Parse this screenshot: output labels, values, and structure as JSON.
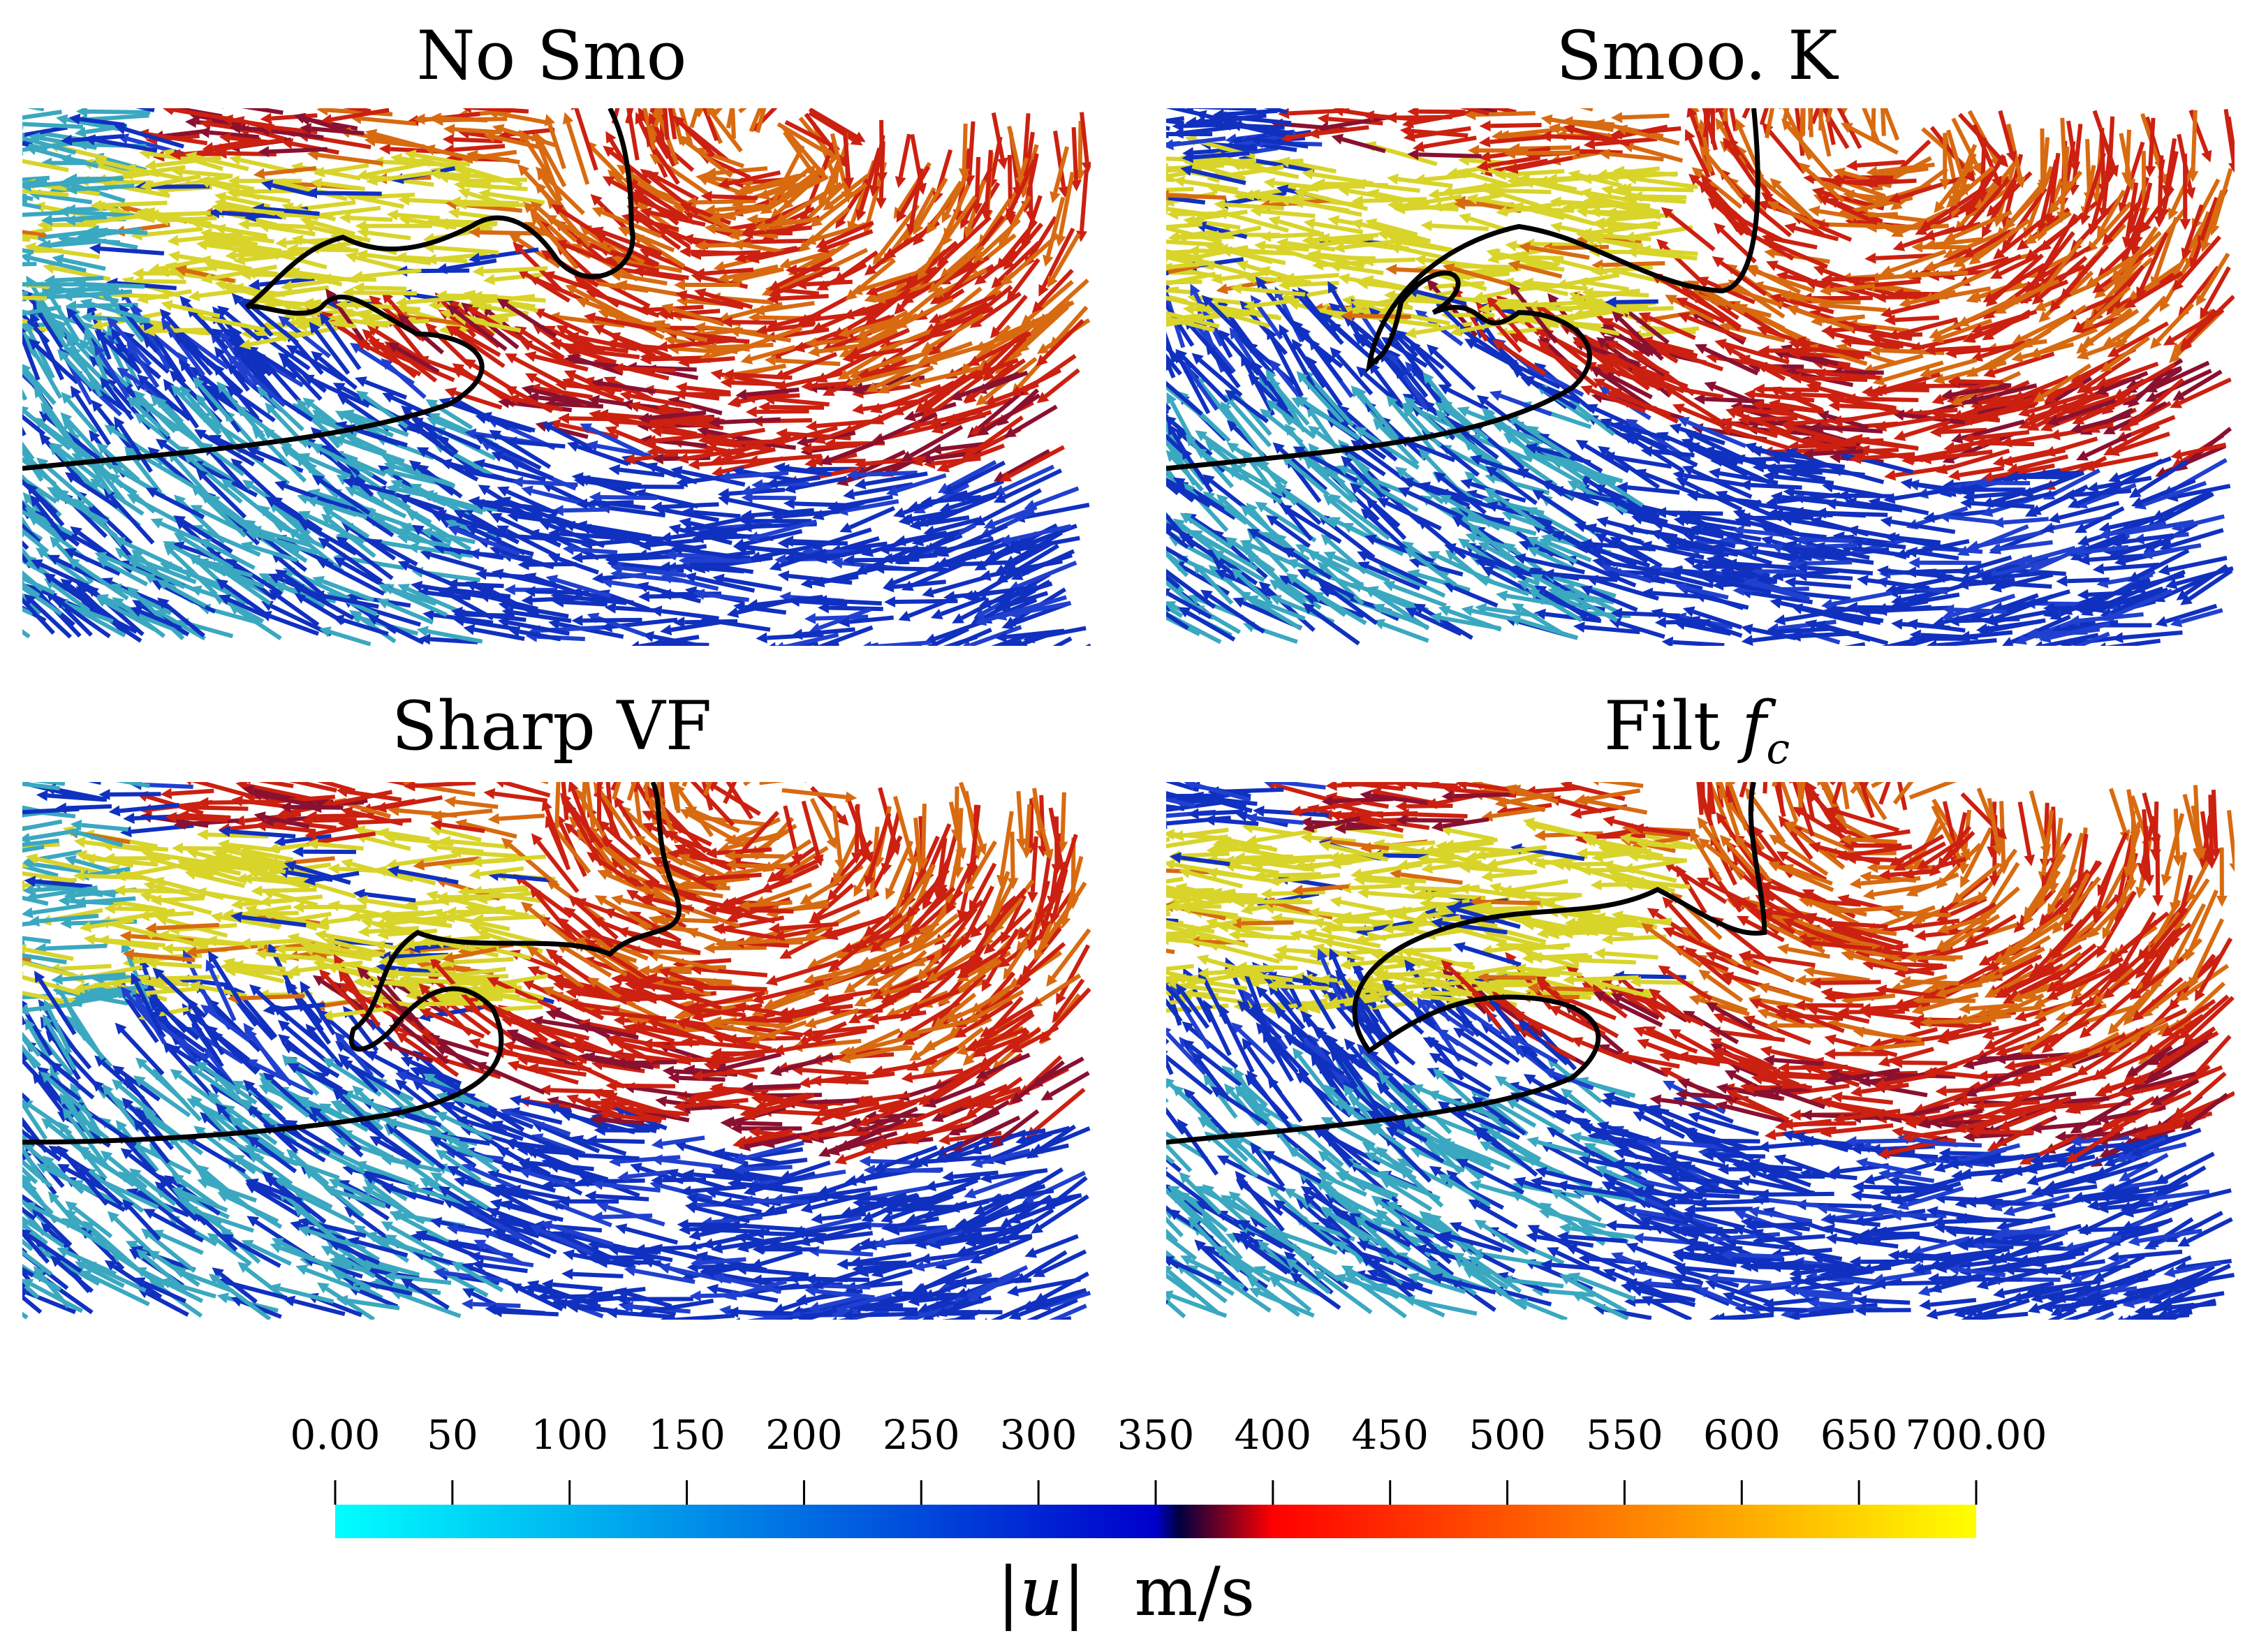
{
  "panels": [
    {
      "title": "No Smo",
      "title_plain": true
    },
    {
      "title": "Smoo. K",
      "title_plain": true
    },
    {
      "title": "Sharp VF",
      "title_plain": true
    },
    {
      "title": "Filt",
      "title_math": "fc",
      "title_sub": "c",
      "title_base": "f"
    }
  ],
  "colorbar": {
    "ticks": [
      "0.00",
      "50",
      "100",
      "150",
      "200",
      "250",
      "300",
      "350",
      "400",
      "450",
      "500",
      "550",
      "600",
      "650",
      "700.00"
    ],
    "min": 0,
    "max": 700,
    "quantity": "|u|",
    "unit": "m/s",
    "stops": [
      {
        "v": 0,
        "color": "#00ffff"
      },
      {
        "v": 350,
        "color": "#0000cc"
      },
      {
        "v": 360,
        "color": "#000040"
      },
      {
        "v": 400,
        "color": "#ff0000"
      },
      {
        "v": 525,
        "color": "#ff6a00"
      },
      {
        "v": 700,
        "color": "#ffff00"
      }
    ]
  },
  "colors": {
    "interface": "#000000",
    "yellow": "#d8d42a",
    "orange": "#d86a10",
    "red": "#cc2010",
    "blue": "#1030c0",
    "cyan": "#3aa8c0"
  }
}
